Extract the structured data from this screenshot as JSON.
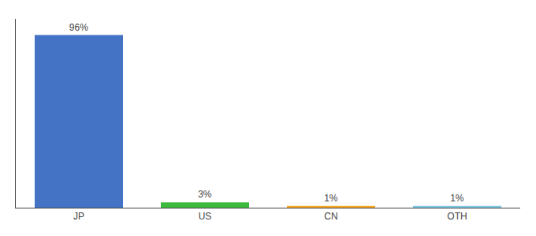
{
  "chart_data": {
    "type": "bar",
    "categories": [
      "JP",
      "US",
      "CN",
      "OTH"
    ],
    "values": [
      96,
      3,
      1,
      1
    ],
    "value_labels": [
      "96%",
      "3%",
      "1%",
      "1%"
    ],
    "colors": [
      "#4472c4",
      "#3dba3d",
      "#f5a623",
      "#7ec8e3"
    ],
    "ylim": [
      0,
      105
    ],
    "grid": false,
    "data_labels": true,
    "tick_labels": "x"
  }
}
